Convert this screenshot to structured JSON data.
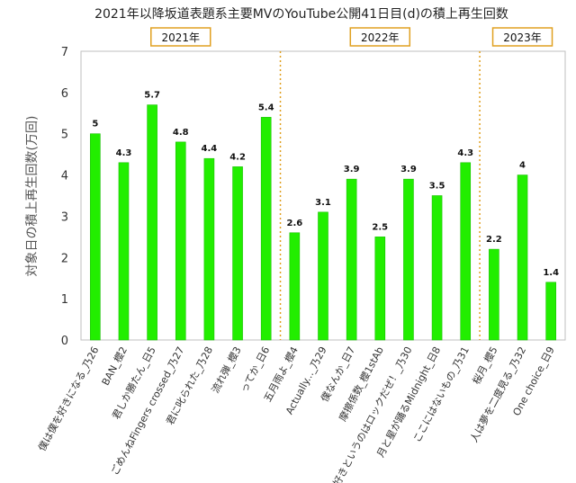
{
  "chart_data": {
    "type": "bar",
    "title": "2021年以降坂道表題系主要MVのYouTube公開41日目(d)の積上再生回数",
    "ylabel": "対象日の積上再生回数(万回)",
    "xlabel": "",
    "ylim": [
      0,
      7
    ],
    "yticks": [
      0,
      1,
      2,
      3,
      4,
      5,
      6,
      7
    ],
    "grid": false,
    "bar_color": "#22ee00",
    "categories": [
      "僕は僕を好きになる_乃26",
      "BAN_櫻2",
      "君しか勝たん_日5",
      "ごめんねFingers crossed_乃27",
      "君に叱られた_乃28",
      "流れ弾_櫻3",
      "ってか_日6",
      "五月雨よ_櫻4",
      "Actually..._乃29",
      "僕なんか_日7",
      "摩擦係数_櫻1stAb",
      "好きというのはロックだぜ！_乃30",
      "月と星が踊るMidnight_日8",
      "ここにはないもの_乃31",
      "桜月_櫻5",
      "人は夢を二度見る_乃32",
      "One choice_日9"
    ],
    "values": [
      5,
      4.3,
      5.7,
      4.8,
      4.4,
      4.2,
      5.4,
      2.6,
      3.1,
      3.9,
      2.5,
      3.9,
      3.5,
      4.3,
      2.2,
      4,
      1.4
    ],
    "data_labels": [
      "5",
      "4.3",
      "5.7",
      "4.8",
      "4.4",
      "4.2",
      "5.4",
      "2.6",
      "3.1",
      "3.9",
      "2.5",
      "3.9",
      "3.5",
      "4.3",
      "2.2",
      "4",
      "1.4"
    ],
    "year_groups": [
      {
        "label": "2021年",
        "start": 0,
        "end": 6
      },
      {
        "label": "2022年",
        "start": 7,
        "end": 13
      },
      {
        "label": "2023年",
        "start": 14,
        "end": 16
      }
    ],
    "separator_color": "#e0a020"
  }
}
